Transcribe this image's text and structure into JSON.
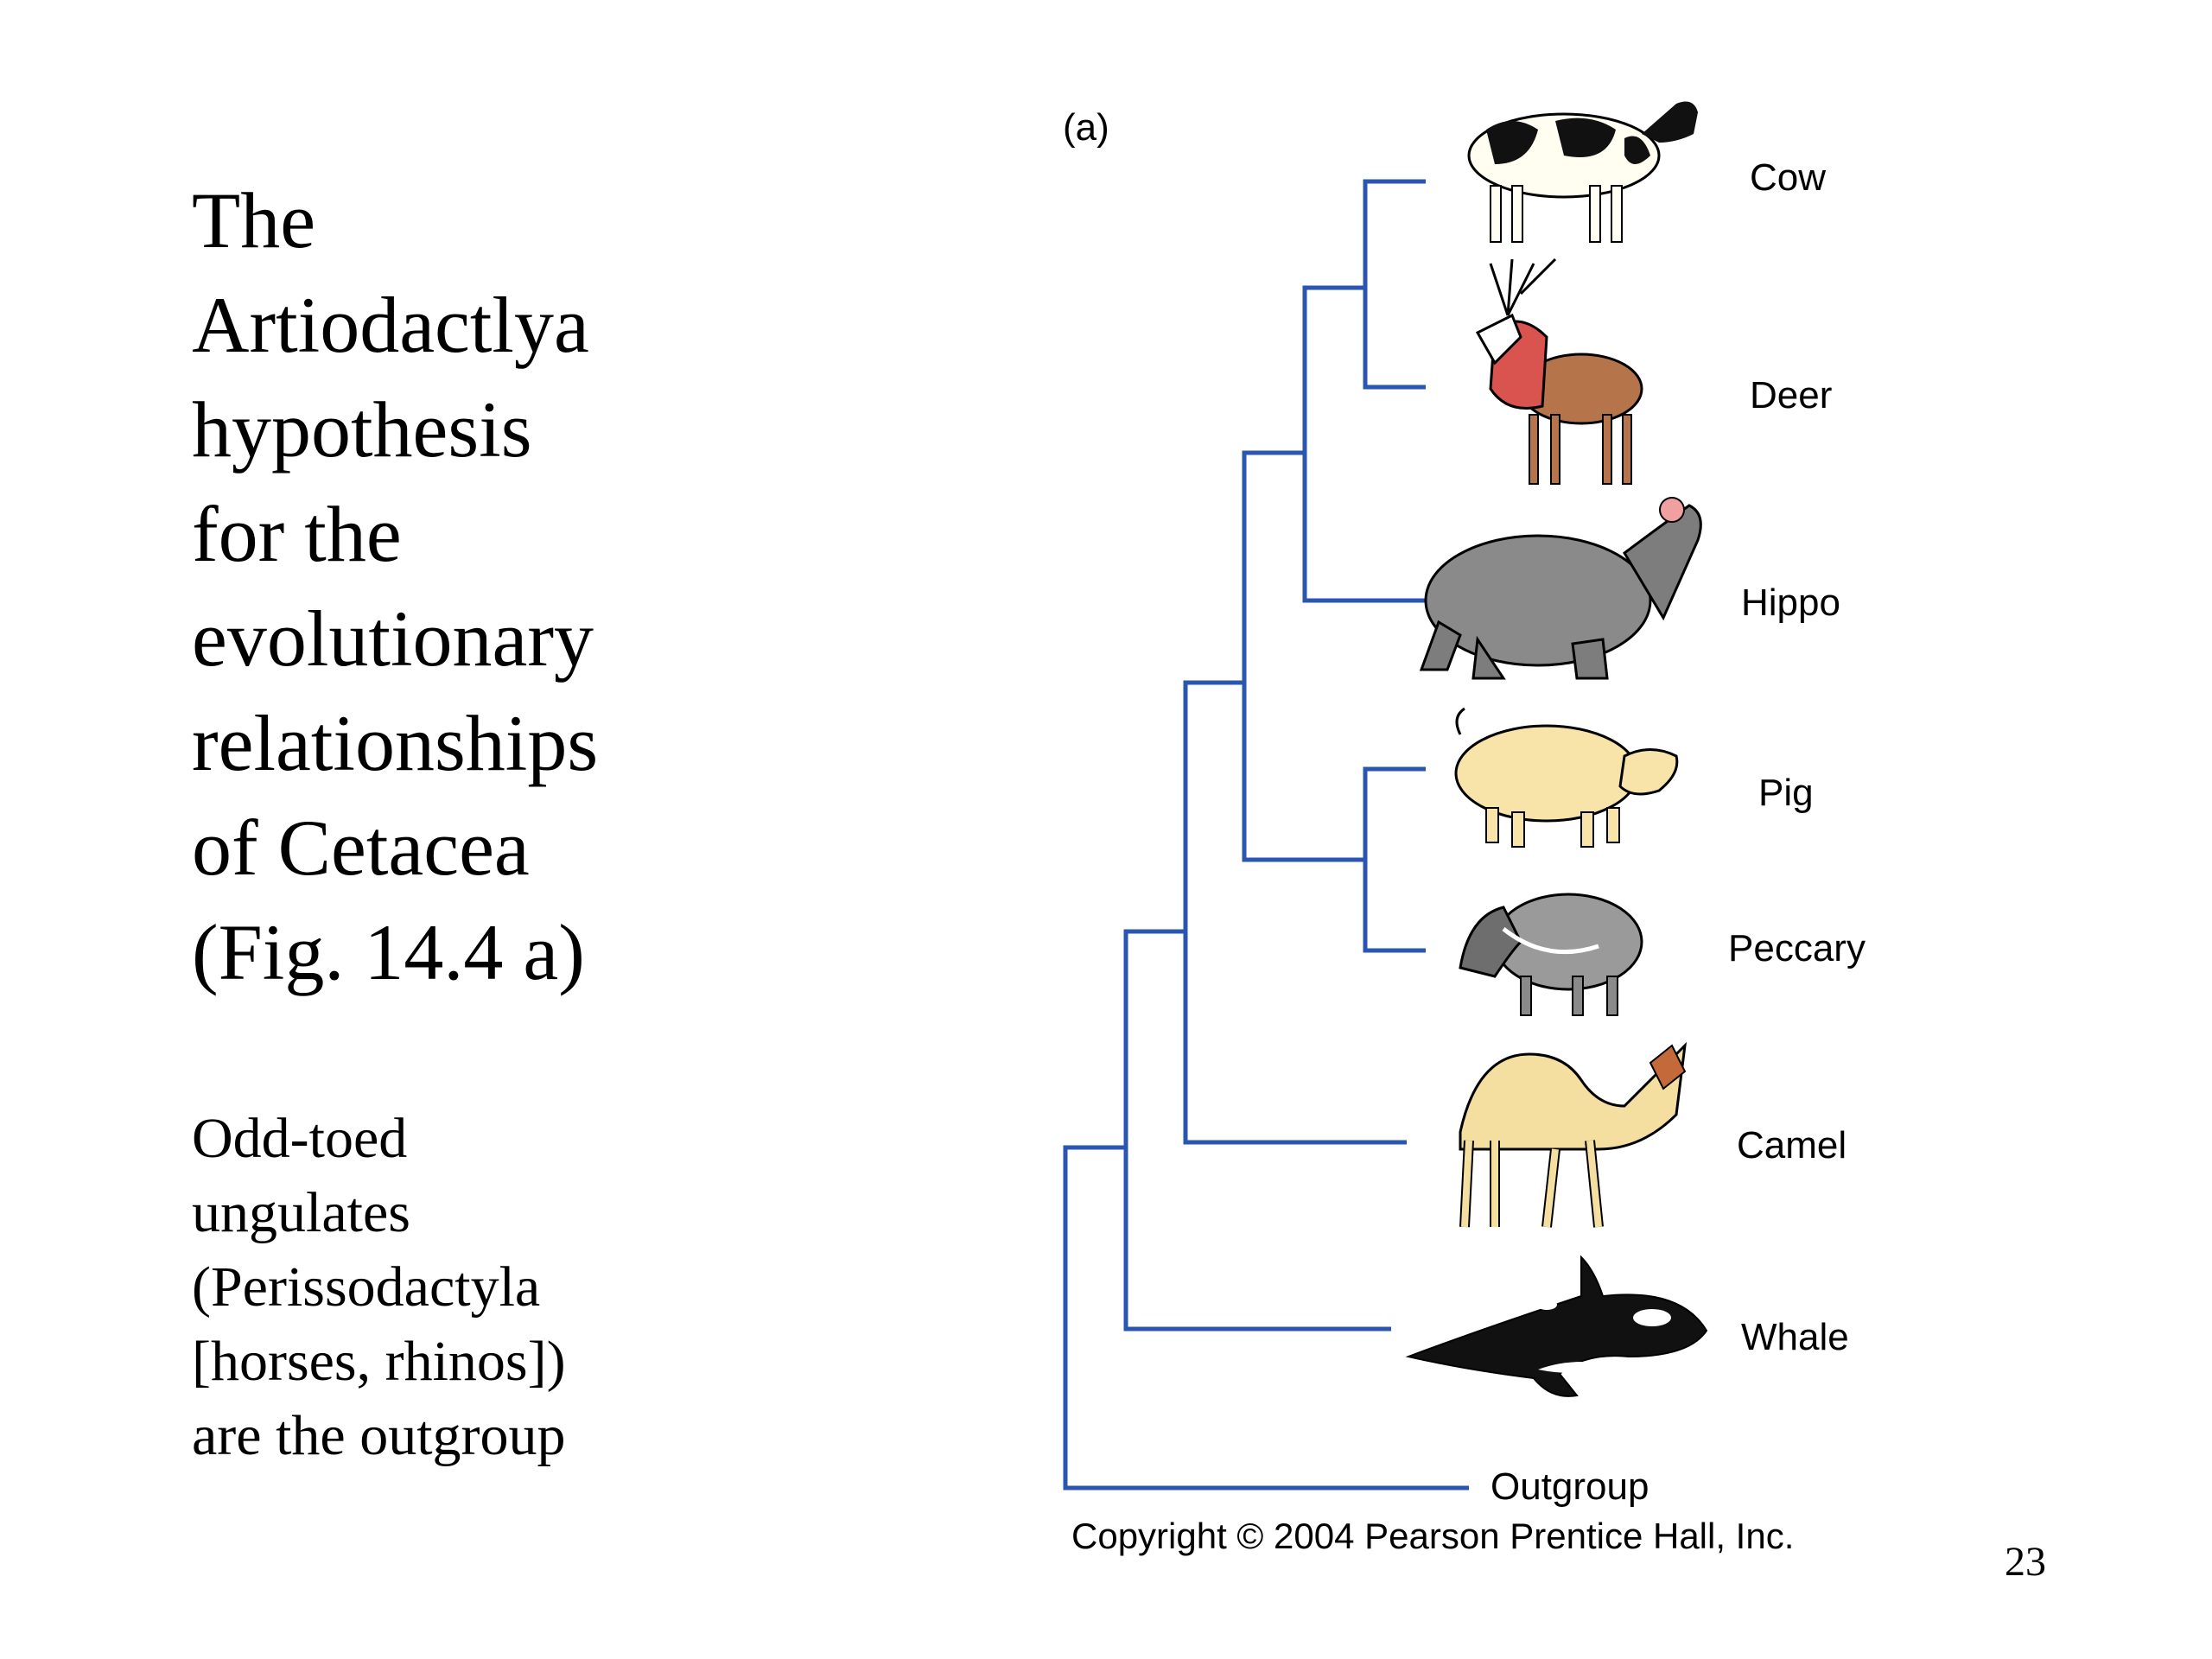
{
  "slide": {
    "title_lines": [
      "The",
      "Artiodactlya",
      "hypothesis",
      "for the",
      "evolutionary",
      "relationships",
      "of Cetacea",
      "(Fig. 14.4 a)"
    ],
    "subtitle_lines": [
      "Odd-toed",
      "ungulates",
      "(Perissodactyla",
      "[horses, rhinos])",
      "are the outgroup"
    ],
    "page_number": "23"
  },
  "figure": {
    "panel_label": "(a)",
    "taxa": [
      "Cow",
      "Deer",
      "Hippo",
      "Pig",
      "Peccary",
      "Camel",
      "Whale",
      "Outgroup"
    ],
    "tree_topology": "(Outgroup,(Whale,(Camel,((Hippo,(Cow,Deer)),(Pig,Peccary)))))",
    "credit": "Copyright © 2004 Pearson Prentice Hall, Inc.",
    "colors": {
      "branch": "#2a55b0"
    },
    "illustration_icons": [
      "cow-icon",
      "deer-icon",
      "hippo-icon",
      "pig-icon",
      "peccary-icon",
      "camel-icon",
      "whale-icon"
    ]
  }
}
